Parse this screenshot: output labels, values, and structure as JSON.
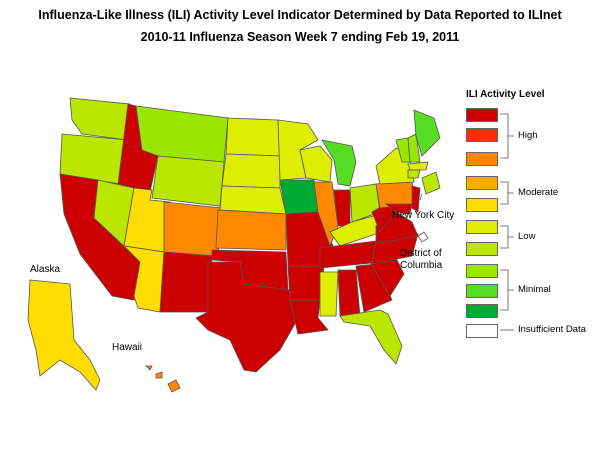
{
  "title": "Influenza-Like Illness (ILI) Activity Level Indicator Determined by Data Reported to ILInet",
  "subtitle": "2010-11  Influenza Season Week  7 ending Feb 19, 2011",
  "colors": {
    "high_10": "#cc0000",
    "high_9": "#ee3300",
    "high_8": "#ff8800",
    "moderate_7": "#ffaa00",
    "moderate_6": "#ffdd00",
    "low_5": "#ddee00",
    "low_4": "#bbe600",
    "minimal_3": "#99e600",
    "minimal_2": "#55dd22",
    "minimal_1": "#00aa33",
    "insufficient": "#ffffff",
    "border": "#555555"
  },
  "legend": {
    "title": "ILI Activity Level",
    "groups": {
      "high": "High",
      "moderate": "Moderate",
      "low": "Low",
      "minimal": "Minimal",
      "insufficient": "Insufficient Data"
    }
  },
  "map_labels": {
    "alaska": "Alaska",
    "hawaii": "Hawaii",
    "new_york_city": "New York City",
    "dc_line1": "District of",
    "dc_line2": "Columbia"
  }
}
